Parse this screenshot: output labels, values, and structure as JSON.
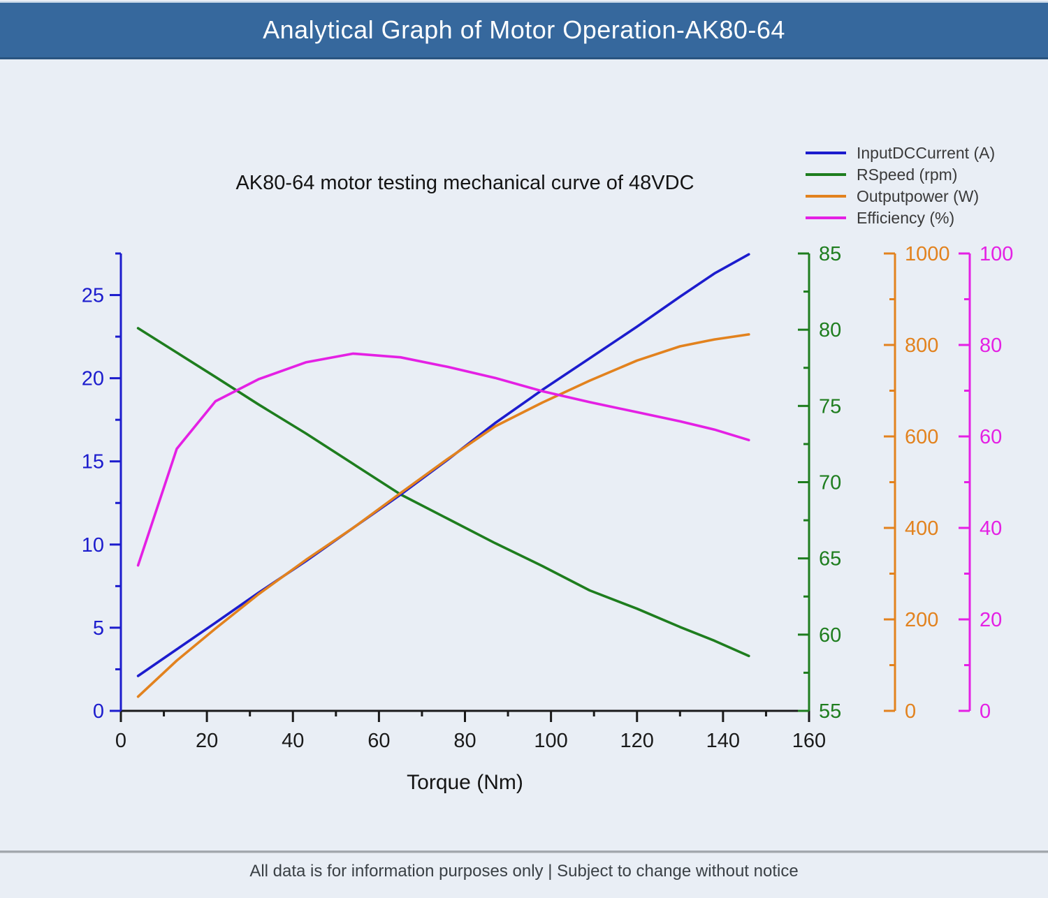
{
  "header": {
    "title": "Analytical Graph of Motor Operation-AK80-64"
  },
  "chart_data": {
    "type": "line",
    "title": "AK80-64 motor testing mechanical curve of 48VDC",
    "xlabel": "Torque (Nm)",
    "grid": false,
    "legend_position": "top-right",
    "legend_text_color": "#3a3a3a",
    "x_axis": {
      "label": "Torque (Nm)",
      "min": 0,
      "max": 160,
      "minor_step": 10,
      "ticks": [
        0,
        20,
        40,
        60,
        80,
        100,
        120,
        140,
        160
      ],
      "color": "#1a1a1a"
    },
    "x": [
      4,
      13,
      22,
      32,
      43,
      54,
      65,
      76,
      87,
      98,
      109,
      120,
      130,
      138,
      146
    ],
    "series": [
      {
        "name": "InputDCCurrent (A)",
        "key": "input-dc-current",
        "color": "#1c1ccd",
        "axis": {
          "min": 0,
          "max": 27.5,
          "minor_step": 2.5,
          "ticks": [
            0,
            5,
            10,
            15,
            20,
            25
          ],
          "side": "left"
        },
        "values": [
          2.1,
          3.7,
          5.3,
          7.1,
          9.0,
          11.0,
          13.0,
          15.1,
          17.3,
          19.3,
          21.2,
          23.1,
          24.9,
          26.3,
          27.45
        ]
      },
      {
        "name": "RSpeed (rpm)",
        "key": "rspeed",
        "color": "#1e7d1e",
        "axis": {
          "min": 55,
          "max": 85,
          "minor_step": 2.5,
          "ticks": [
            55,
            60,
            65,
            70,
            75,
            80,
            85
          ],
          "side": "right"
        },
        "values": [
          80.1,
          78.5,
          76.9,
          75.1,
          73.2,
          71.2,
          69.2,
          67.6,
          66.0,
          64.5,
          62.9,
          61.7,
          60.5,
          59.6,
          58.6
        ]
      },
      {
        "name": "Outputpower (W)",
        "key": "output-power",
        "color": "#e2821e",
        "axis": {
          "min": 0,
          "max": 1000,
          "minor_step": 100,
          "ticks": [
            0,
            200,
            400,
            600,
            800,
            1000
          ],
          "side": "right"
        },
        "values": [
          31,
          110,
          180,
          255,
          330,
          400,
          476,
          551,
          622,
          674,
          722,
          766,
          797,
          812,
          823
        ]
      },
      {
        "name": "Efficiency (%)",
        "key": "efficiency",
        "color": "#e420e4",
        "axis": {
          "min": 0,
          "max": 100,
          "minor_step": 10,
          "ticks": [
            0,
            20,
            40,
            60,
            80,
            100
          ],
          "side": "right"
        },
        "values": [
          31.8,
          57.3,
          67.7,
          72.5,
          76.2,
          78.1,
          77.3,
          75.2,
          72.8,
          69.9,
          67.5,
          65.3,
          63.3,
          61.5,
          59.2
        ]
      }
    ]
  },
  "footer": {
    "text": "All data is for information purposes only | Subject to change without notice"
  }
}
